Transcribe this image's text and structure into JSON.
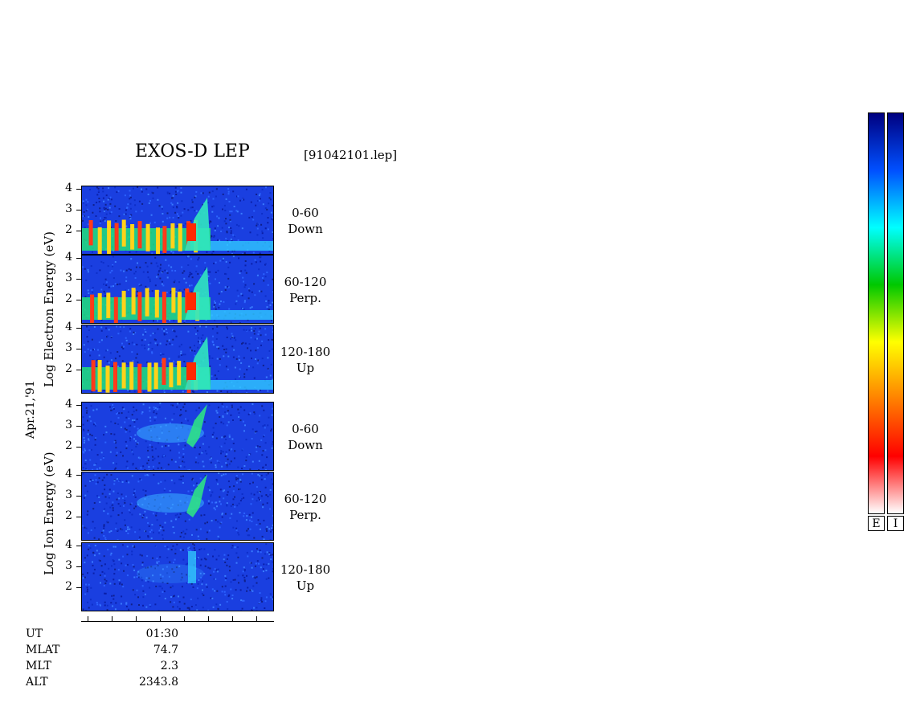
{
  "header": {
    "title": "EXOS-D LEP",
    "file": "[91042101.lep]"
  },
  "date_label": "Apr.21,'91",
  "electron_axis_label": "Log  Electron  Energy (eV)",
  "ion_axis_label": "Log  Ion  Energy (eV)",
  "panels": [
    {
      "species": "electron",
      "angle": "0-60",
      "dir": "Down"
    },
    {
      "species": "electron",
      "angle": "60-120",
      "dir": "Perp."
    },
    {
      "species": "electron",
      "angle": "120-180",
      "dir": "Up"
    },
    {
      "species": "ion",
      "angle": "0-60",
      "dir": "Down"
    },
    {
      "species": "ion",
      "angle": "60-120",
      "dir": "Perp."
    },
    {
      "species": "ion",
      "angle": "120-180",
      "dir": "Up"
    }
  ],
  "footer": {
    "labels": [
      "UT",
      "MLAT",
      "MLT",
      "ALT"
    ],
    "values": [
      "01:30",
      "74.7",
      "2.3",
      "2343.8"
    ]
  },
  "colorbars": {
    "electron_label": "E",
    "ion_label": "I"
  },
  "chart_data": {
    "type": "heatmap",
    "title": "EXOS-D LEP",
    "ylabel": "Log Energy (eV)",
    "y_ticks": [
      "4",
      "3",
      "2"
    ],
    "ylim": [
      1,
      4
    ],
    "x_ticks": [
      "01:30"
    ],
    "x_tick_count": 8,
    "colormap": [
      "#ffffff",
      "#ff0000",
      "#ff8000",
      "#ffff00",
      "#00c800",
      "#00ffff",
      "#0050ff",
      "#000080"
    ],
    "description_values": {
      "electron_features": {
        "band_center_log_eV": 2.0,
        "intensity": "high",
        "inverted_V_peak_log_eV": 3.8
      },
      "ion_features": {
        "peak_log_eV": 3.5,
        "intensity": "moderate"
      }
    }
  }
}
